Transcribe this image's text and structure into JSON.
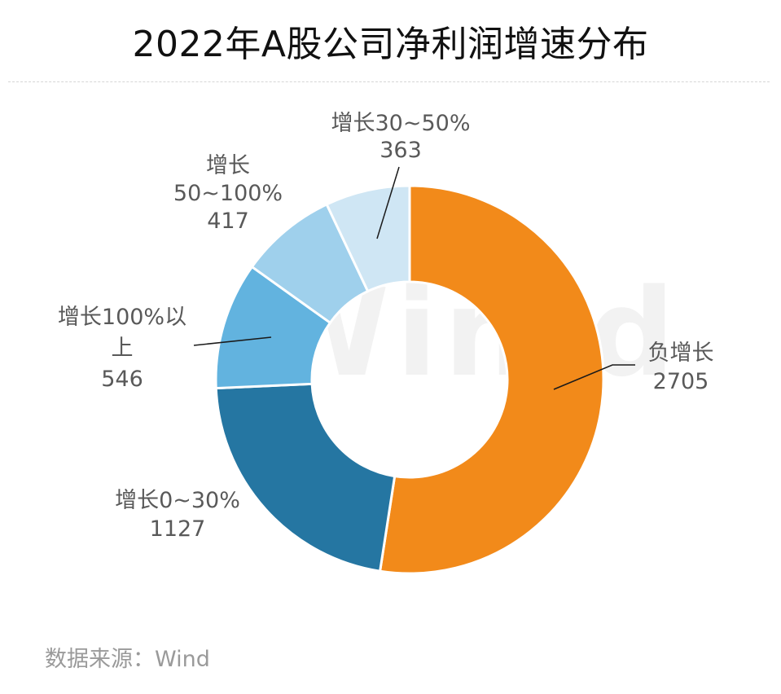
{
  "title": "2022年A股公司净利润增速分布",
  "source": "数据来源：Wind",
  "watermark": "Win.d",
  "chart_data": {
    "type": "pie",
    "title": "2022年A股公司净利润增速分布",
    "donut": true,
    "start": "12 o'clock, clockwise",
    "slices": [
      {
        "label": "负增长",
        "value": 2705,
        "value_label": "2705",
        "color": "#F28A1A"
      },
      {
        "label": "增长0~30%",
        "value": 1127,
        "value_label": "1127",
        "color": "#2576A2"
      },
      {
        "label": "增长100%以上",
        "value": 546,
        "value_label": "546",
        "color": "#62B3DF"
      },
      {
        "label": "增长50~100%",
        "value": 417,
        "value_label": "417",
        "color": "#9FD0EC"
      },
      {
        "label": "增长30~50%",
        "value": 363,
        "value_label": "363",
        "color": "#CFE6F4"
      }
    ],
    "label_lines": [
      [
        "负增长",
        "2705"
      ],
      [
        "增长0~30%",
        "1127"
      ],
      [
        "增长100%以",
        "上",
        "546"
      ],
      [
        "增长",
        "50~100%",
        "417"
      ],
      [
        "增长30~50%",
        "363"
      ]
    ]
  }
}
